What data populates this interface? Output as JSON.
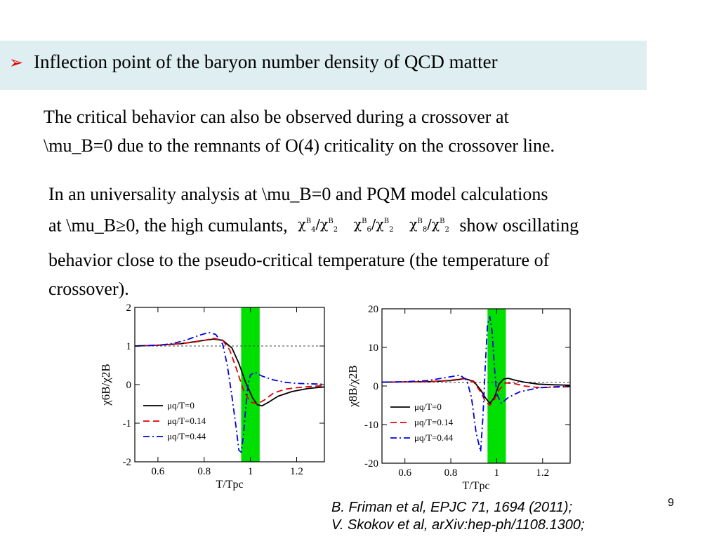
{
  "slide": {
    "header": "Inflection point of the baryon number density of QCD matter",
    "para1": [
      "The critical behavior can also be observed during a crossover at",
      "\\mu_B=0 due to the remnants of O(4) criticality on the crossover line."
    ],
    "para2": {
      "line1": "In an universality analysis at \\mu_B=0 and PQM model calculations",
      "line2_pre": "at \\mu_B≥0, the high cumulants,",
      "line2_post": "show oscillating",
      "line3": "behavior close to the pseudo-critical temperature (the temperature of",
      "line4": "crossover)."
    },
    "ref1": "B. Friman et al, EPJC 71, 1694 (2011);",
    "ref2": "V. Skokov et al, arXiv:hep-ph/1108.1300;",
    "page_number": "9"
  },
  "colors": {
    "header_bg": "#dfeef0",
    "bullet": "#e00000",
    "band": "#00e000",
    "series": [
      "#000000",
      "#e00000",
      "#0000e0"
    ]
  },
  "chart_data": [
    {
      "type": "line",
      "ylabel": "χ6B/χ2B",
      "xlabel": "T/Tpc",
      "xlim": [
        0.5,
        1.32
      ],
      "ylim": [
        -2,
        2
      ],
      "xticks": [
        "0.6",
        "0.8",
        "1",
        "1.2"
      ],
      "xtick_values": [
        0.6,
        0.8,
        1.0,
        1.2
      ],
      "yticks": [
        "2",
        "1",
        "0",
        "-1",
        "-2"
      ],
      "ytick_values": [
        2,
        1,
        0,
        -1,
        -2
      ],
      "reference_line": 1,
      "band": [
        0.96,
        1.04
      ],
      "legend": "bottom-left",
      "series": [
        {
          "name": "μq/T=0",
          "style": "solid",
          "x": [
            0.5,
            0.6,
            0.7,
            0.78,
            0.84,
            0.88,
            0.92,
            0.95,
            0.98,
            1.01,
            1.03,
            1.05,
            1.08,
            1.12,
            1.18,
            1.25,
            1.32
          ],
          "y": [
            1.0,
            1.02,
            1.06,
            1.13,
            1.18,
            1.15,
            0.95,
            0.55,
            0.05,
            -0.35,
            -0.52,
            -0.55,
            -0.45,
            -0.3,
            -0.18,
            -0.1,
            -0.06
          ]
        },
        {
          "name": "μq/T=0.14",
          "style": "dashed",
          "x": [
            0.5,
            0.6,
            0.7,
            0.78,
            0.84,
            0.88,
            0.91,
            0.94,
            0.97,
            1.0,
            1.03,
            1.06,
            1.1,
            1.15,
            1.2,
            1.26,
            1.32
          ],
          "y": [
            1.0,
            1.02,
            1.06,
            1.12,
            1.2,
            1.15,
            0.9,
            0.4,
            -0.15,
            -0.45,
            -0.5,
            -0.4,
            -0.22,
            -0.12,
            -0.08,
            -0.05,
            -0.03
          ]
        },
        {
          "name": "μq/T=0.44",
          "style": "dashdot",
          "x": [
            0.5,
            0.6,
            0.66,
            0.72,
            0.78,
            0.82,
            0.85,
            0.88,
            0.9,
            0.92,
            0.94,
            0.95,
            0.96,
            0.97,
            0.98,
            0.99,
            1.0,
            1.02,
            1.05,
            1.1,
            1.15,
            1.2,
            1.26,
            1.32
          ],
          "y": [
            1.0,
            1.02,
            1.06,
            1.15,
            1.28,
            1.35,
            1.3,
            1.05,
            0.5,
            -0.3,
            -1.2,
            -1.7,
            -1.75,
            -1.3,
            -0.6,
            0.0,
            0.25,
            0.32,
            0.22,
            0.12,
            0.06,
            0.03,
            0.02,
            0.01
          ]
        }
      ]
    },
    {
      "type": "line",
      "ylabel": "χ8B/χ2B",
      "xlabel": "T/Tpc",
      "xlim": [
        0.5,
        1.32
      ],
      "ylim": [
        -20,
        20
      ],
      "xticks": [
        "0.6",
        "0.8",
        "1",
        "1.2"
      ],
      "xtick_values": [
        0.6,
        0.8,
        1.0,
        1.2
      ],
      "yticks": [
        "20",
        "10",
        "0",
        "-10",
        "-20"
      ],
      "ytick_values": [
        20,
        10,
        0,
        -10,
        -20
      ],
      "reference_line": 1,
      "band": [
        0.96,
        1.04
      ],
      "legend": "bottom-left",
      "series": [
        {
          "name": "μq/T=0",
          "style": "solid",
          "x": [
            0.5,
            0.7,
            0.8,
            0.86,
            0.9,
            0.93,
            0.95,
            0.97,
            0.99,
            1.01,
            1.03,
            1.05,
            1.08,
            1.12,
            1.18,
            1.25,
            1.32
          ],
          "y": [
            1.0,
            1.1,
            1.4,
            1.9,
            1.2,
            -1.0,
            -3.0,
            -4.5,
            -3.0,
            0.5,
            1.8,
            2.0,
            1.5,
            1.0,
            0.5,
            0.3,
            0.2
          ]
        },
        {
          "name": "μq/T=0.14",
          "style": "dashed",
          "x": [
            0.5,
            0.7,
            0.8,
            0.86,
            0.9,
            0.93,
            0.95,
            0.97,
            0.99,
            1.01,
            1.04,
            1.08,
            1.12,
            1.18,
            1.25,
            1.32
          ],
          "y": [
            1.0,
            1.1,
            1.5,
            2.0,
            1.0,
            -1.5,
            -4.0,
            -5.0,
            -3.5,
            -1.0,
            0.8,
            0.6,
            0.0,
            -0.4,
            -0.3,
            -0.2
          ]
        },
        {
          "name": "μq/T=0.44",
          "style": "dashdot",
          "x": [
            0.5,
            0.6,
            0.7,
            0.78,
            0.84,
            0.87,
            0.89,
            0.91,
            0.93,
            0.94,
            0.95,
            0.96,
            0.97,
            0.98,
            0.99,
            1.0,
            1.02,
            1.05,
            1.1,
            1.18,
            1.25,
            1.32
          ],
          "y": [
            1.0,
            1.1,
            1.4,
            2.2,
            2.8,
            1.5,
            -3.0,
            -12.0,
            -17.0,
            -8.0,
            5.0,
            16.0,
            18.0,
            14.0,
            5.0,
            -2.0,
            -4.5,
            -3.0,
            -1.5,
            -0.5,
            -0.2,
            -0.1
          ]
        }
      ]
    }
  ]
}
